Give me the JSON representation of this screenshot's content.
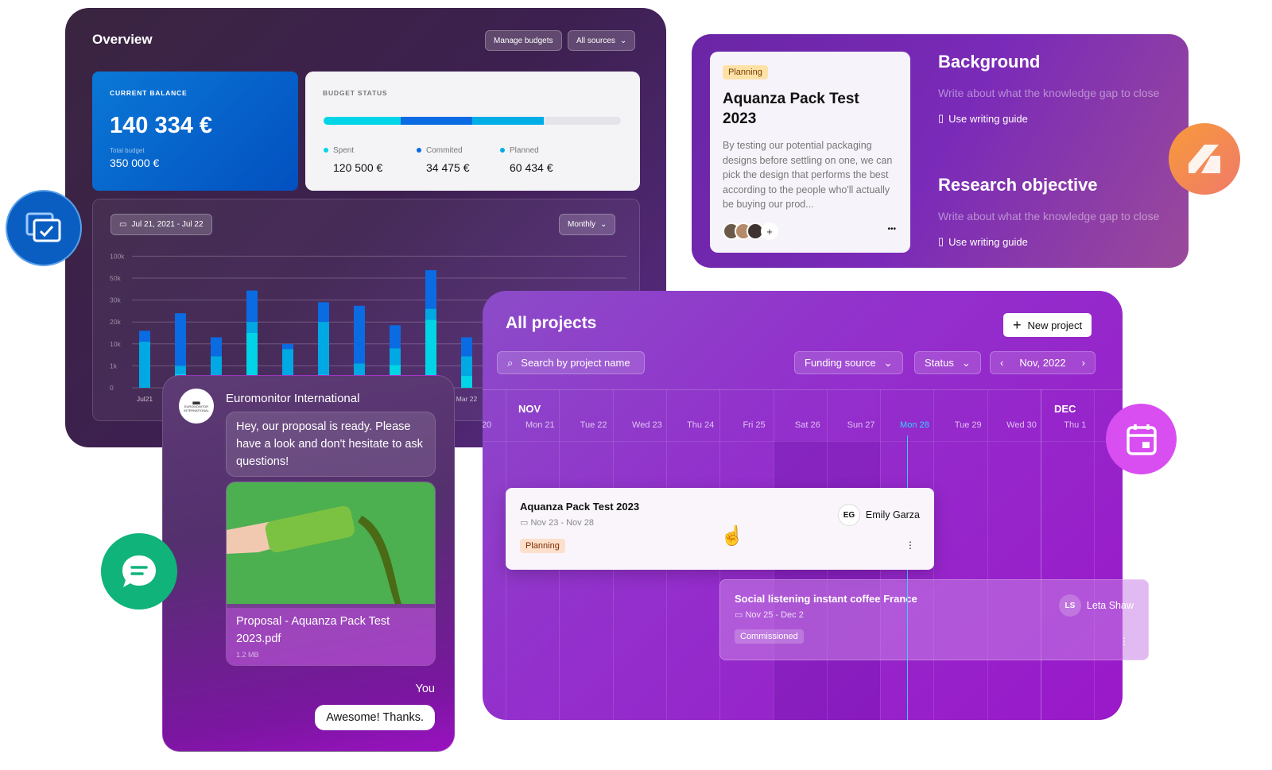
{
  "overview": {
    "title": "Overview",
    "manage_budgets": "Manage budgets",
    "sources_select": "All sources",
    "balance": {
      "label": "CURRENT BALANCE",
      "value": "140 334 €",
      "total_label": "Total budget",
      "total_value": "350 000 €"
    },
    "budget_status": {
      "label": "BUDGET STATUS",
      "progress_segments_percent": {
        "spent": 26,
        "commited": 24,
        "planned": 24
      },
      "items": [
        {
          "label": "Spent",
          "value": "120 500 €",
          "color": "#00d4e6"
        },
        {
          "label": "Commited",
          "value": "34 475 €",
          "color": "#0a6be3"
        },
        {
          "label": "Planned",
          "value": "60 434 €",
          "color": "#00aee6"
        }
      ]
    },
    "date_range": "Jul 21, 2021 - Jul 22",
    "period_select": "Monthly"
  },
  "chart_data": {
    "type": "bar",
    "stacked": true,
    "grid": true,
    "y_ticks": [
      "0",
      "1k",
      "10k",
      "20k",
      "30k",
      "50k",
      "100k"
    ],
    "y_tick_values": [
      0,
      1000,
      10000,
      20000,
      30000,
      50000,
      100000
    ],
    "x_tick_labels_visible": [
      "Jul21",
      "Mar 22"
    ],
    "series_colors": {
      "spent": "#00d4e6",
      "planned": "#00a8e4",
      "committed": "#0a6be3"
    },
    "stack_tops": [
      {
        "spent": 0,
        "planned": 11000,
        "committed": 16000
      },
      {
        "spent": 630,
        "planned": 1050,
        "committed": 24000
      },
      {
        "spent": 580,
        "planned": 4900,
        "committed": 13000
      },
      {
        "spent": 15000,
        "planned": 20000,
        "committed": 38700
      },
      {
        "spent": 0,
        "planned": 7900,
        "committed": 10000
      },
      {
        "spent": 600,
        "planned": 20000,
        "committed": 29000
      },
      {
        "spent": 400,
        "planned": 2000,
        "committed": 27400
      },
      {
        "spent": 1300,
        "planned": 8200,
        "committed": 18500
      },
      {
        "spent": 21000,
        "planned": 26000,
        "committed": 68000
      },
      {
        "spent": 550,
        "planned": 4900,
        "committed": 13000
      }
    ]
  },
  "research": {
    "card": {
      "tag": "Planning",
      "title": "Aquanza Pack Test 2023",
      "description": "By testing our potential packaging designs before settling on one, we can pick the design that performs the best according to the people who'll actually be buying our prod...",
      "add": "+",
      "more": "•••"
    },
    "sections": [
      {
        "title": "Background",
        "placeholder": "Write about what the knowledge gap to close",
        "guide": "Use writing guide"
      },
      {
        "title": "Research objective",
        "placeholder": "Write about what the knowledge gap to close",
        "guide": "Use writing guide"
      }
    ]
  },
  "projects": {
    "title": "All projects",
    "new_project": "New project",
    "search_placeholder": "Search by project name",
    "funding_source": "Funding source",
    "status": "Status",
    "month": "Nov, 2022",
    "months": [
      "NOV",
      "DEC"
    ],
    "days": [
      "20",
      "Mon 21",
      "Tue 22",
      "Wed 23",
      "Thu 24",
      "Fri 25",
      "Sat 26",
      "Sun 27",
      "Mon 28",
      "Tue 29",
      "Wed 30",
      "Thu 1"
    ],
    "today": "Mon 28",
    "today_color": "#2ed3ff",
    "tasks": [
      {
        "title": "Aquanza Pack Test 2023",
        "dates": "Nov 23 - Nov 28",
        "status": "Planning",
        "initials": "EG",
        "owner": "Emily Garza"
      },
      {
        "title": "Social listening instant coffee France",
        "dates": "Nov 25 - Dec 2",
        "status": "Commissioned",
        "initials": "LS",
        "owner": "Leta Shaw"
      }
    ]
  },
  "chat": {
    "sender": "Euromonitor International",
    "logo_text": "EUROMONITOR INTERNATIONAL",
    "message": "Hey, our proposal is ready. Please have a look and don't hesitate to ask questions!",
    "attachment": {
      "name": "Proposal - Aquanza Pack Test 2023.pdf",
      "size": "1.2 MB"
    },
    "you_label": "You",
    "reply": "Awesome! Thanks."
  }
}
